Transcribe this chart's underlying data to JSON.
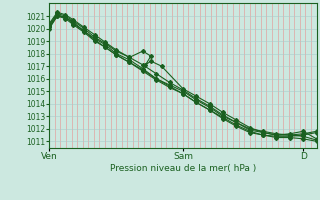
{
  "bg_color": "#cce8e0",
  "grid_color_v": "#e89090",
  "grid_color_h": "#aacccc",
  "line_color": "#1a6020",
  "marker": "D",
  "markersize": 2.0,
  "linewidth": 0.8,
  "ylim": [
    1010.5,
    1022.0
  ],
  "yticks": [
    1011,
    1012,
    1013,
    1014,
    1015,
    1016,
    1017,
    1018,
    1019,
    1020,
    1021
  ],
  "xlabel": "Pression niveau de la mer( hPa )",
  "xtick_labels": [
    "Ven",
    "Sam",
    "D"
  ],
  "xtick_positions": [
    0,
    0.5,
    0.95
  ],
  "series": [
    {
      "x": [
        0.0,
        0.03,
        0.06,
        0.09,
        0.13,
        0.17,
        0.21,
        0.25,
        0.3,
        0.35,
        0.4,
        0.45,
        0.5,
        0.55,
        0.6,
        0.65,
        0.7,
        0.75,
        0.8,
        0.85,
        0.9,
        0.95,
        1.0
      ],
      "y": [
        1020.2,
        1021.1,
        1020.9,
        1020.5,
        1019.8,
        1019.2,
        1018.7,
        1018.0,
        1017.5,
        1016.8,
        1016.0,
        1015.5,
        1015.0,
        1014.3,
        1013.7,
        1013.0,
        1012.5,
        1012.0,
        1011.8,
        1011.6,
        1011.5,
        1011.4,
        1011.1
      ]
    },
    {
      "x": [
        0.0,
        0.03,
        0.06,
        0.09,
        0.13,
        0.17,
        0.21,
        0.25,
        0.3,
        0.35,
        0.4,
        0.45,
        0.5,
        0.55,
        0.6,
        0.65,
        0.7,
        0.75,
        0.8,
        0.85,
        0.9,
        0.95,
        1.0
      ],
      "y": [
        1020.0,
        1021.0,
        1020.8,
        1020.3,
        1019.7,
        1019.0,
        1018.5,
        1017.9,
        1017.3,
        1016.6,
        1015.9,
        1015.3,
        1014.8,
        1014.1,
        1013.5,
        1012.9,
        1012.3,
        1011.8,
        1011.5,
        1011.3,
        1011.3,
        1011.2,
        1011.0
      ]
    },
    {
      "x": [
        0.0,
        0.03,
        0.06,
        0.09,
        0.13,
        0.17,
        0.21,
        0.25,
        0.3,
        0.35,
        0.38,
        0.36,
        0.38,
        0.42,
        0.5,
        0.55,
        0.6,
        0.65,
        0.7,
        0.75,
        0.8,
        0.85,
        0.9,
        0.95,
        1.0
      ],
      "y": [
        1020.3,
        1021.2,
        1021.0,
        1020.6,
        1020.0,
        1019.3,
        1018.8,
        1018.2,
        1017.7,
        1018.2,
        1017.8,
        1017.1,
        1017.4,
        1017.0,
        1015.2,
        1014.6,
        1014.0,
        1013.3,
        1012.7,
        1012.1,
        1011.7,
        1011.5,
        1011.6,
        1011.8,
        1011.2
      ]
    },
    {
      "x": [
        0.0,
        0.03,
        0.06,
        0.09,
        0.13,
        0.17,
        0.21,
        0.25,
        0.3,
        0.35,
        0.4,
        0.45,
        0.5,
        0.55,
        0.6,
        0.65,
        0.7,
        0.75,
        0.8,
        0.85,
        0.9,
        0.95,
        1.0
      ],
      "y": [
        1020.4,
        1021.3,
        1021.1,
        1020.7,
        1020.1,
        1019.5,
        1018.9,
        1018.3,
        1017.7,
        1017.1,
        1016.4,
        1015.7,
        1015.1,
        1014.4,
        1013.8,
        1013.1,
        1012.5,
        1011.9,
        1011.7,
        1011.5,
        1011.5,
        1011.6,
        1011.8
      ]
    },
    {
      "x": [
        0.0,
        0.03,
        0.06,
        0.09,
        0.13,
        0.17,
        0.21,
        0.25,
        0.3,
        0.35,
        0.4,
        0.45,
        0.5,
        0.55,
        0.6,
        0.65,
        0.7,
        0.75,
        0.8,
        0.85,
        0.9,
        0.95,
        1.0
      ],
      "y": [
        1020.1,
        1021.0,
        1020.9,
        1020.4,
        1019.8,
        1019.1,
        1018.5,
        1017.9,
        1017.3,
        1016.7,
        1016.0,
        1015.4,
        1014.8,
        1014.1,
        1013.5,
        1012.8,
        1012.2,
        1011.7,
        1011.5,
        1011.4,
        1011.4,
        1011.5,
        1011.7
      ]
    }
  ],
  "vline_positions": [
    0.5
  ],
  "figsize": [
    3.2,
    2.0
  ],
  "dpi": 100
}
